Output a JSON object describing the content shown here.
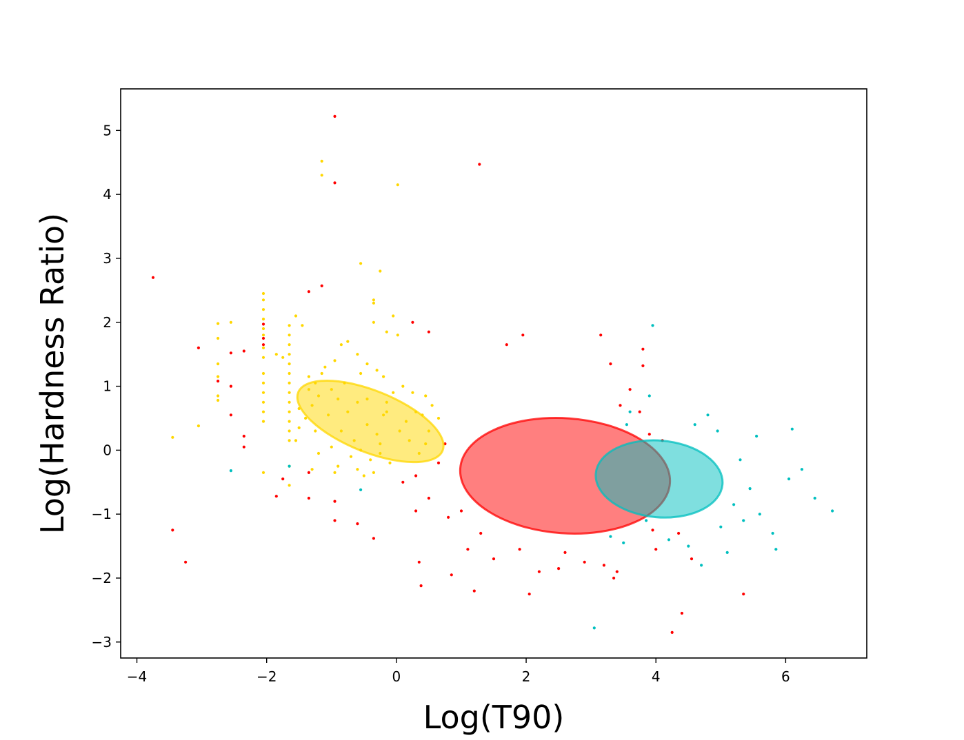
{
  "chart_data": {
    "type": "scatter",
    "title": "",
    "xlabel": "Log(T90)",
    "ylabel": "Log(Hardness Ratio)",
    "xlim": [
      -4.25,
      7.25
    ],
    "ylim": [
      -3.25,
      5.65
    ],
    "xticks": [
      -4,
      -2,
      0,
      2,
      4,
      6
    ],
    "yticks": [
      -3,
      -2,
      -1,
      0,
      1,
      2,
      3,
      4,
      5
    ],
    "grid": false,
    "legend": "none",
    "colors": {
      "yellow": "#FFD700",
      "red": "#FF0000",
      "cyan": "#00BFBF"
    },
    "series": [
      {
        "color": "#FFD700",
        "points": [
          [
            -1.15,
            4.52
          ],
          [
            -1.15,
            4.3
          ],
          [
            0.02,
            4.15
          ],
          [
            -0.55,
            2.92
          ],
          [
            -0.25,
            2.8
          ],
          [
            -0.35,
            2.35
          ],
          [
            -0.35,
            2.3
          ],
          [
            -2.05,
            2.45
          ],
          [
            -2.05,
            2.35
          ],
          [
            -2.05,
            2.2
          ],
          [
            -2.05,
            2.05
          ],
          [
            -2.05,
            1.9
          ],
          [
            -2.05,
            1.8
          ],
          [
            -2.05,
            1.6
          ],
          [
            -2.05,
            1.45
          ],
          [
            -2.05,
            1.2
          ],
          [
            -2.05,
            1.05
          ],
          [
            -2.05,
            0.9
          ],
          [
            -2.05,
            0.75
          ],
          [
            -2.05,
            0.6
          ],
          [
            -2.05,
            0.45
          ],
          [
            -1.65,
            1.95
          ],
          [
            -1.65,
            1.8
          ],
          [
            -1.65,
            1.65
          ],
          [
            -1.65,
            1.5
          ],
          [
            -1.65,
            1.35
          ],
          [
            -1.65,
            1.2
          ],
          [
            -1.65,
            1.05
          ],
          [
            -1.65,
            0.9
          ],
          [
            -1.65,
            0.75
          ],
          [
            -1.65,
            0.6
          ],
          [
            -1.65,
            0.45
          ],
          [
            -1.65,
            0.3
          ],
          [
            -1.65,
            0.15
          ],
          [
            -1.65,
            -0.25
          ],
          [
            -1.65,
            -0.55
          ],
          [
            -2.75,
            1.98
          ],
          [
            -2.75,
            1.75
          ],
          [
            -2.75,
            1.35
          ],
          [
            -2.75,
            1.15
          ],
          [
            -2.75,
            0.85
          ],
          [
            -2.75,
            0.78
          ],
          [
            -2.55,
            2.0
          ],
          [
            -3.45,
            0.2
          ],
          [
            -3.05,
            0.38
          ],
          [
            -2.05,
            -0.35
          ],
          [
            -1.85,
            1.5
          ],
          [
            -1.75,
            1.45
          ],
          [
            -1.55,
            2.1
          ],
          [
            -1.45,
            1.95
          ],
          [
            -1.35,
            1.15
          ],
          [
            -1.25,
            1.05
          ],
          [
            -0.35,
            2.0
          ],
          [
            -0.05,
            2.1
          ],
          [
            -0.15,
            1.85
          ],
          [
            0.02,
            1.8
          ],
          [
            -0.85,
            1.65
          ],
          [
            -0.75,
            1.7
          ],
          [
            -0.6,
            1.5
          ],
          [
            -0.45,
            1.35
          ],
          [
            -0.95,
            1.4
          ],
          [
            -1.1,
            1.3
          ],
          [
            -0.3,
            1.25
          ],
          [
            -0.2,
            1.15
          ],
          [
            0.1,
            1.0
          ],
          [
            0.25,
            0.9
          ],
          [
            0.45,
            0.85
          ],
          [
            0.55,
            0.7
          ],
          [
            0.65,
            0.5
          ],
          [
            0.5,
            0.3
          ],
          [
            0.4,
            0.55
          ],
          [
            -0.05,
            0.9
          ],
          [
            -0.15,
            0.75
          ],
          [
            -1.2,
            0.85
          ],
          [
            -1.3,
            0.7
          ],
          [
            -1.0,
            0.95
          ],
          [
            -0.9,
            0.8
          ],
          [
            -0.75,
            0.6
          ],
          [
            -0.6,
            0.75
          ],
          [
            -0.45,
            0.4
          ],
          [
            -0.3,
            0.25
          ],
          [
            -0.2,
            0.55
          ],
          [
            -1.4,
            0.5
          ],
          [
            -1.5,
            0.35
          ],
          [
            -1.55,
            0.15
          ],
          [
            -1.25,
            0.3
          ],
          [
            -1.05,
            0.55
          ],
          [
            -0.85,
            0.3
          ],
          [
            -0.65,
            0.15
          ],
          [
            -0.55,
            0.0
          ],
          [
            -0.4,
            -0.15
          ],
          [
            -0.25,
            0.1
          ],
          [
            0.05,
            0.3
          ],
          [
            0.2,
            0.15
          ],
          [
            0.35,
            -0.05
          ],
          [
            -0.1,
            -0.2
          ],
          [
            -0.35,
            -0.35
          ],
          [
            -0.7,
            -0.1
          ],
          [
            -1.0,
            0.05
          ],
          [
            -1.2,
            -0.05
          ],
          [
            -0.9,
            -0.25
          ],
          [
            -0.5,
            -0.4
          ],
          [
            0.15,
            0.45
          ],
          [
            -0.8,
            1.05
          ],
          [
            -0.55,
            1.2
          ],
          [
            -1.35,
            0.95
          ],
          [
            -1.5,
            0.65
          ],
          [
            -0.15,
            0.6
          ],
          [
            0.3,
            0.6
          ],
          [
            -0.45,
            0.8
          ],
          [
            -1.15,
            1.2
          ],
          [
            -0.25,
            -0.05
          ],
          [
            0.45,
            0.1
          ],
          [
            -1.3,
            -0.3
          ],
          [
            -0.6,
            -0.3
          ],
          [
            -0.95,
            -0.35
          ]
        ]
      },
      {
        "color": "#FF0000",
        "points": [
          [
            -0.95,
            5.22
          ],
          [
            1.28,
            4.47
          ],
          [
            -0.95,
            4.18
          ],
          [
            -3.75,
            2.7
          ],
          [
            -1.15,
            2.57
          ],
          [
            -1.35,
            2.48
          ],
          [
            -2.55,
            1.52
          ],
          [
            -2.35,
            1.55
          ],
          [
            -3.05,
            1.6
          ],
          [
            -2.75,
            1.08
          ],
          [
            -2.05,
            1.97
          ],
          [
            -2.05,
            1.75
          ],
          [
            -2.05,
            1.65
          ],
          [
            -2.55,
            0.55
          ],
          [
            -2.35,
            0.22
          ],
          [
            -2.35,
            0.05
          ],
          [
            -3.45,
            -1.25
          ],
          [
            -3.25,
            -1.75
          ],
          [
            -1.85,
            -0.72
          ],
          [
            -1.75,
            -0.45
          ],
          [
            -1.35,
            -0.75
          ],
          [
            -1.35,
            -0.35
          ],
          [
            -0.95,
            -0.8
          ],
          [
            -0.95,
            -1.1
          ],
          [
            -0.6,
            -1.15
          ],
          [
            -0.35,
            -1.38
          ],
          [
            0.25,
            2.0
          ],
          [
            0.5,
            1.85
          ],
          [
            1.95,
            1.8
          ],
          [
            3.15,
            1.8
          ],
          [
            1.7,
            1.65
          ],
          [
            3.8,
            1.58
          ],
          [
            3.3,
            1.35
          ],
          [
            3.8,
            1.32
          ],
          [
            0.35,
            -1.75
          ],
          [
            0.38,
            -2.12
          ],
          [
            0.85,
            -1.95
          ],
          [
            1.2,
            -2.2
          ],
          [
            2.05,
            -2.25
          ],
          [
            3.35,
            -2.0
          ],
          [
            4.25,
            -2.85
          ],
          [
            4.4,
            -2.55
          ],
          [
            5.35,
            -2.25
          ],
          [
            -2.55,
            1.0
          ],
          [
            0.1,
            -0.5
          ],
          [
            0.3,
            -0.4
          ],
          [
            0.5,
            -0.75
          ],
          [
            0.65,
            -0.2
          ],
          [
            0.75,
            0.1
          ],
          [
            0.8,
            -1.05
          ],
          [
            0.3,
            -0.95
          ],
          [
            4.0,
            -1.55
          ],
          [
            4.35,
            -1.3
          ],
          [
            3.95,
            -1.25
          ],
          [
            4.55,
            -1.7
          ],
          [
            3.6,
            0.95
          ],
          [
            3.75,
            0.6
          ],
          [
            3.45,
            0.7
          ],
          [
            3.9,
            0.25
          ],
          [
            4.1,
            0.15
          ],
          [
            3.2,
            -1.8
          ],
          [
            3.4,
            -1.9
          ],
          [
            2.9,
            -1.75
          ],
          [
            2.5,
            -1.85
          ],
          [
            1.5,
            -1.7
          ],
          [
            1.1,
            -1.55
          ],
          [
            2.2,
            -1.9
          ],
          [
            2.6,
            -1.6
          ],
          [
            1.9,
            -1.55
          ],
          [
            1.3,
            -1.3
          ],
          [
            1.0,
            -0.95
          ]
        ]
      },
      {
        "color": "#00BFBF",
        "points": [
          [
            3.95,
            1.95
          ],
          [
            3.05,
            -2.78
          ],
          [
            -2.55,
            -0.32
          ],
          [
            -1.65,
            -0.25
          ],
          [
            -0.55,
            -0.62
          ],
          [
            6.72,
            -0.95
          ],
          [
            6.45,
            -0.75
          ],
          [
            6.1,
            0.33
          ],
          [
            6.25,
            -0.3
          ],
          [
            6.05,
            -0.45
          ],
          [
            5.85,
            -1.55
          ],
          [
            5.8,
            -1.3
          ],
          [
            5.55,
            0.22
          ],
          [
            5.6,
            -1.0
          ],
          [
            5.45,
            -0.6
          ],
          [
            5.3,
            -0.15
          ],
          [
            5.1,
            -1.6
          ],
          [
            5.35,
            -1.1
          ],
          [
            4.7,
            -1.8
          ],
          [
            4.5,
            -1.5
          ],
          [
            3.85,
            -1.1
          ],
          [
            4.95,
            0.3
          ],
          [
            4.8,
            0.55
          ],
          [
            4.6,
            0.4
          ],
          [
            3.6,
            0.6
          ],
          [
            3.55,
            0.4
          ],
          [
            3.3,
            -1.35
          ],
          [
            3.5,
            -1.45
          ],
          [
            5.2,
            -0.85
          ],
          [
            5.0,
            -1.2
          ],
          [
            4.2,
            -1.4
          ],
          [
            3.9,
            0.85
          ]
        ]
      }
    ],
    "ellipses": [
      {
        "color": "#FFD700",
        "cx": -0.4,
        "cy": 0.45,
        "semi_major": 1.2,
        "semi_minor": 0.48,
        "angle_deg": -22
      },
      {
        "color": "#FF0000",
        "cx": 2.6,
        "cy": -0.4,
        "semi_major": 1.62,
        "semi_minor": 0.9,
        "angle_deg": -4
      },
      {
        "color": "#00BFBF",
        "cx": 4.05,
        "cy": -0.45,
        "semi_major": 0.98,
        "semi_minor": 0.6,
        "angle_deg": -5
      }
    ]
  }
}
